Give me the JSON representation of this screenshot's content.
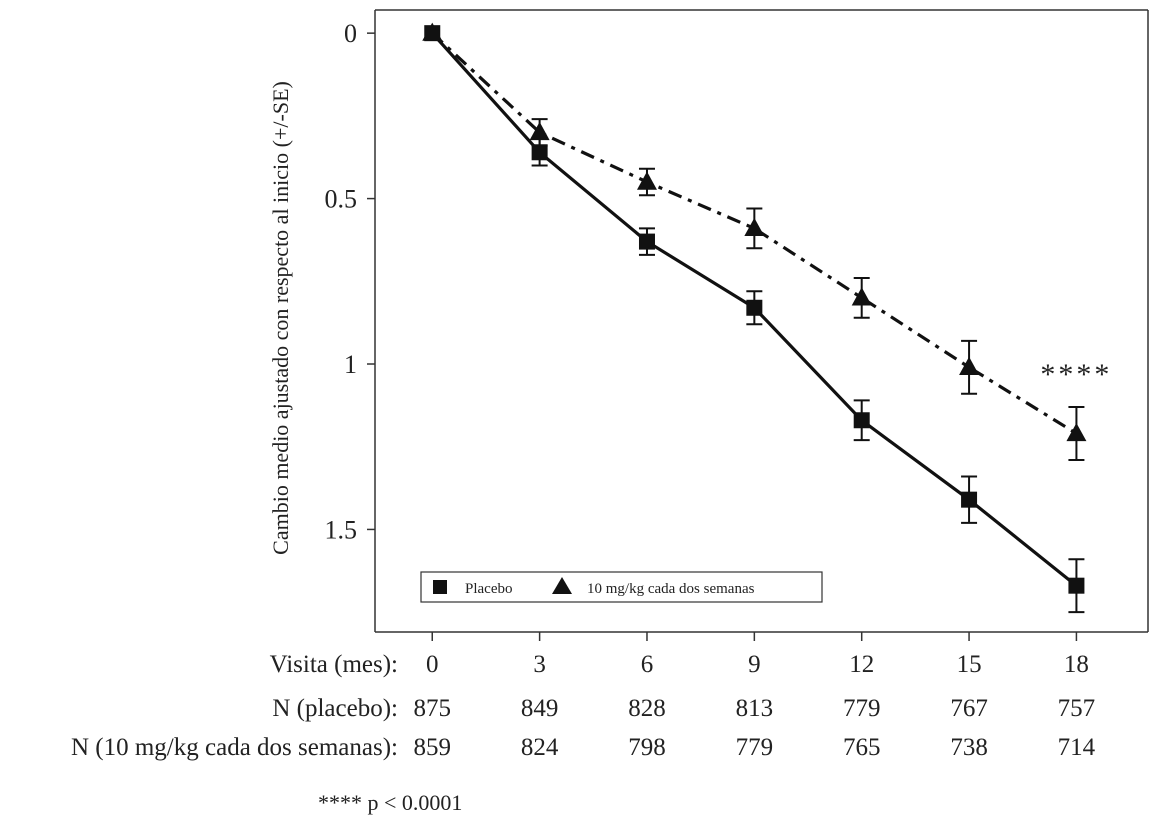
{
  "chart_data": {
    "type": "line",
    "title": "",
    "xlabel": "",
    "ylabel": "Cambio medio ajustado con respecto al inicio (+/-SE)",
    "x": [
      0,
      3,
      6,
      9,
      12,
      15,
      18
    ],
    "x_tick_labels": [
      "0",
      "3",
      "6",
      "9",
      "12",
      "15",
      "18"
    ],
    "y_tick_labels": [
      "0",
      "0.5",
      "1",
      "1.5"
    ],
    "y_ticks": [
      0,
      0.5,
      1,
      1.5
    ],
    "xlim": [
      -1.6,
      20.0
    ],
    "ylim": [
      -0.07,
      1.81
    ],
    "y_inverted": true,
    "grid": false,
    "legend_position": "bottom-left",
    "series": [
      {
        "name": "Placebo",
        "marker": "square",
        "line_style": "solid",
        "values": [
          0,
          0.36,
          0.63,
          0.83,
          1.17,
          1.41,
          1.67
        ],
        "se": [
          0,
          0.04,
          0.04,
          0.05,
          0.06,
          0.07,
          0.08
        ]
      },
      {
        "name": "10 mg/kg cada dos semanas",
        "marker": "triangle",
        "line_style": "dashed",
        "values": [
          0,
          0.3,
          0.45,
          0.59,
          0.8,
          1.01,
          1.21
        ],
        "se": [
          0,
          0.04,
          0.04,
          0.06,
          0.06,
          0.08,
          0.08
        ]
      }
    ],
    "annotations": [
      {
        "text": "****",
        "x": 18,
        "y": 1.03
      }
    ],
    "footnote": "**** p < 0.0001",
    "table": {
      "rows": [
        {
          "label": "Visita (mes):",
          "values": [
            "0",
            "3",
            "6",
            "9",
            "12",
            "15",
            "18"
          ]
        },
        {
          "label": "N (placebo):",
          "values": [
            "875",
            "849",
            "828",
            "813",
            "779",
            "767",
            "757"
          ]
        },
        {
          "label": "N (10 mg/kg cada dos semanas):",
          "values": [
            "859",
            "824",
            "798",
            "779",
            "765",
            "738",
            "714"
          ]
        }
      ]
    }
  },
  "colors": {
    "ink": "#111111",
    "axis": "#333333"
  }
}
